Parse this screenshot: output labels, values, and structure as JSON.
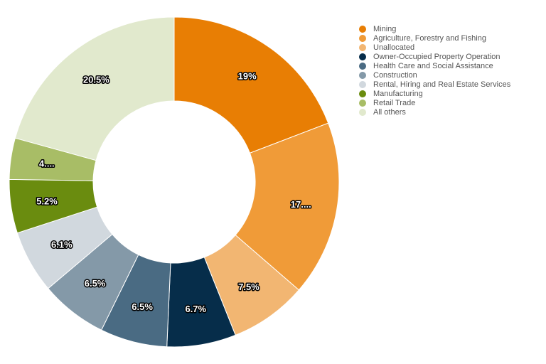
{
  "chart_data": {
    "type": "pie",
    "donut": true,
    "legend_position": "right",
    "slices": [
      {
        "name": "Mining",
        "value": 19.0,
        "label": "19%",
        "color": "#E87E04"
      },
      {
        "name": "Agriculture, Forestry and Fishing",
        "value": 17.0,
        "label": "17....",
        "color": "#F09B38"
      },
      {
        "name": "Unallocated",
        "value": 7.5,
        "label": "7.5%",
        "color": "#F2B672"
      },
      {
        "name": "Owner-Occupied Property Operation",
        "value": 6.7,
        "label": "6.7%",
        "color": "#062D4A"
      },
      {
        "name": "Health Care and Social Assistance",
        "value": 6.5,
        "label": "6.5%",
        "color": "#4A6B83"
      },
      {
        "name": "Construction",
        "value": 6.5,
        "label": "6.5%",
        "color": "#8499A8"
      },
      {
        "name": "Rental, Hiring and Real Estate Services",
        "value": 6.1,
        "label": "6.1%",
        "color": "#D1D8DE"
      },
      {
        "name": "Manufacturing",
        "value": 5.2,
        "label": "5.2%",
        "color": "#6A8C0F"
      },
      {
        "name": "Retail Trade",
        "value": 4.0,
        "label": "4....",
        "color": "#A8BD66"
      },
      {
        "name": "All others",
        "value": 20.5,
        "label": "20.5%",
        "color": "#E1E9CD"
      }
    ]
  }
}
